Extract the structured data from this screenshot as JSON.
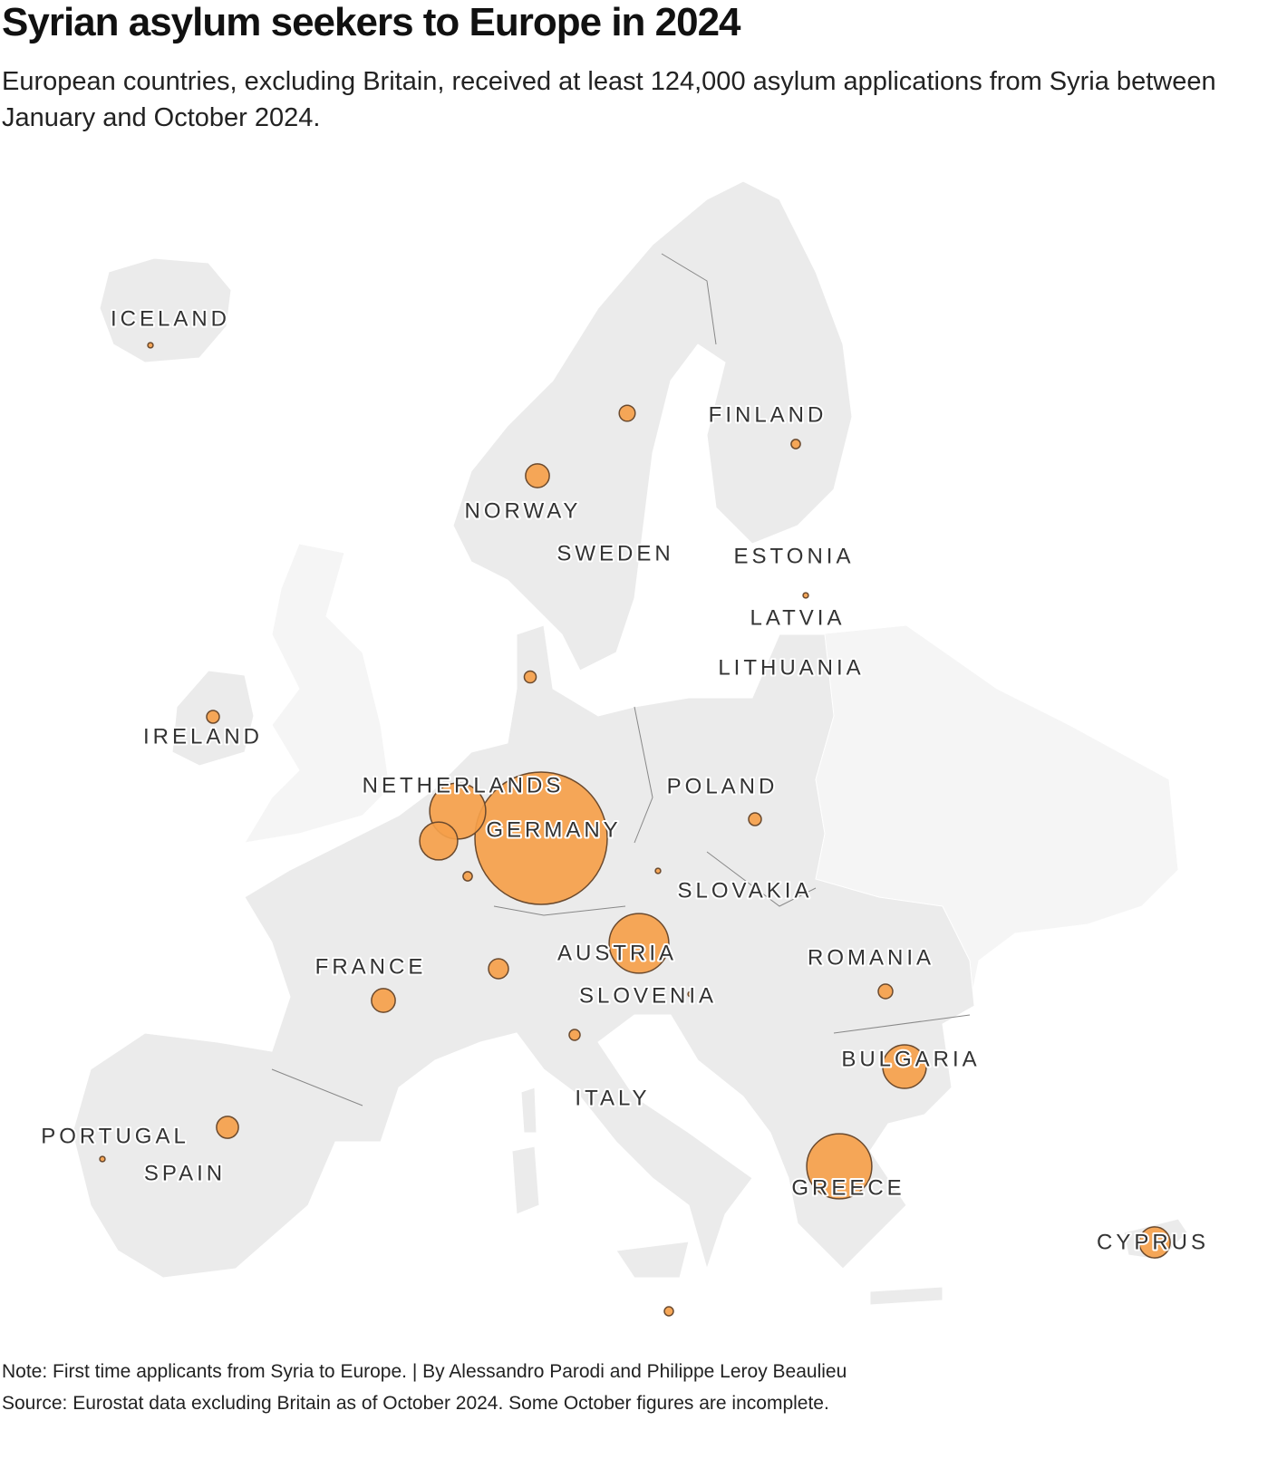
{
  "chart_data": {
    "type": "bubble_map",
    "title": "Syrian asylum seekers to Europe in 2024",
    "subtitle": "European countries, excluding Britain, received at least 124,000 asylum applications from Syria between January and October 2024.",
    "notes": [
      "Note: First time applicants from Syria to Europe. | By Alessandro Parodi and Philippe Leroy Beaulieu",
      "Source: Eurostat data excluding Britain as of October 2024. Some October figures are incomplete."
    ],
    "color": "#f5a04a",
    "categories": [
      "ICELAND",
      "NORWAY",
      "SWEDEN",
      "FINLAND",
      "ESTONIA",
      "LATVIA",
      "LITHUANIA",
      null,
      "IRELAND",
      "NETHERLANDS",
      null,
      null,
      "GERMANY",
      "POLAND",
      null,
      "SLOVAKIA",
      "AUSTRIA",
      null,
      "FRANCE",
      "SLOVENIA",
      "ROMANIA",
      "ITALY",
      "BULGARIA",
      "PORTUGAL",
      "SPAIN",
      "GREECE",
      "CYPRUS",
      null
    ],
    "values": [
      100,
      2000,
      900,
      300,
      100,
      null,
      null,
      500,
      570,
      11100,
      5100,
      300,
      62000,
      570,
      100,
      null,
      12600,
      1400,
      2000,
      100,
      740,
      420,
      6700,
      100,
      1700,
      15000,
      3400,
      290
    ]
  }
}
